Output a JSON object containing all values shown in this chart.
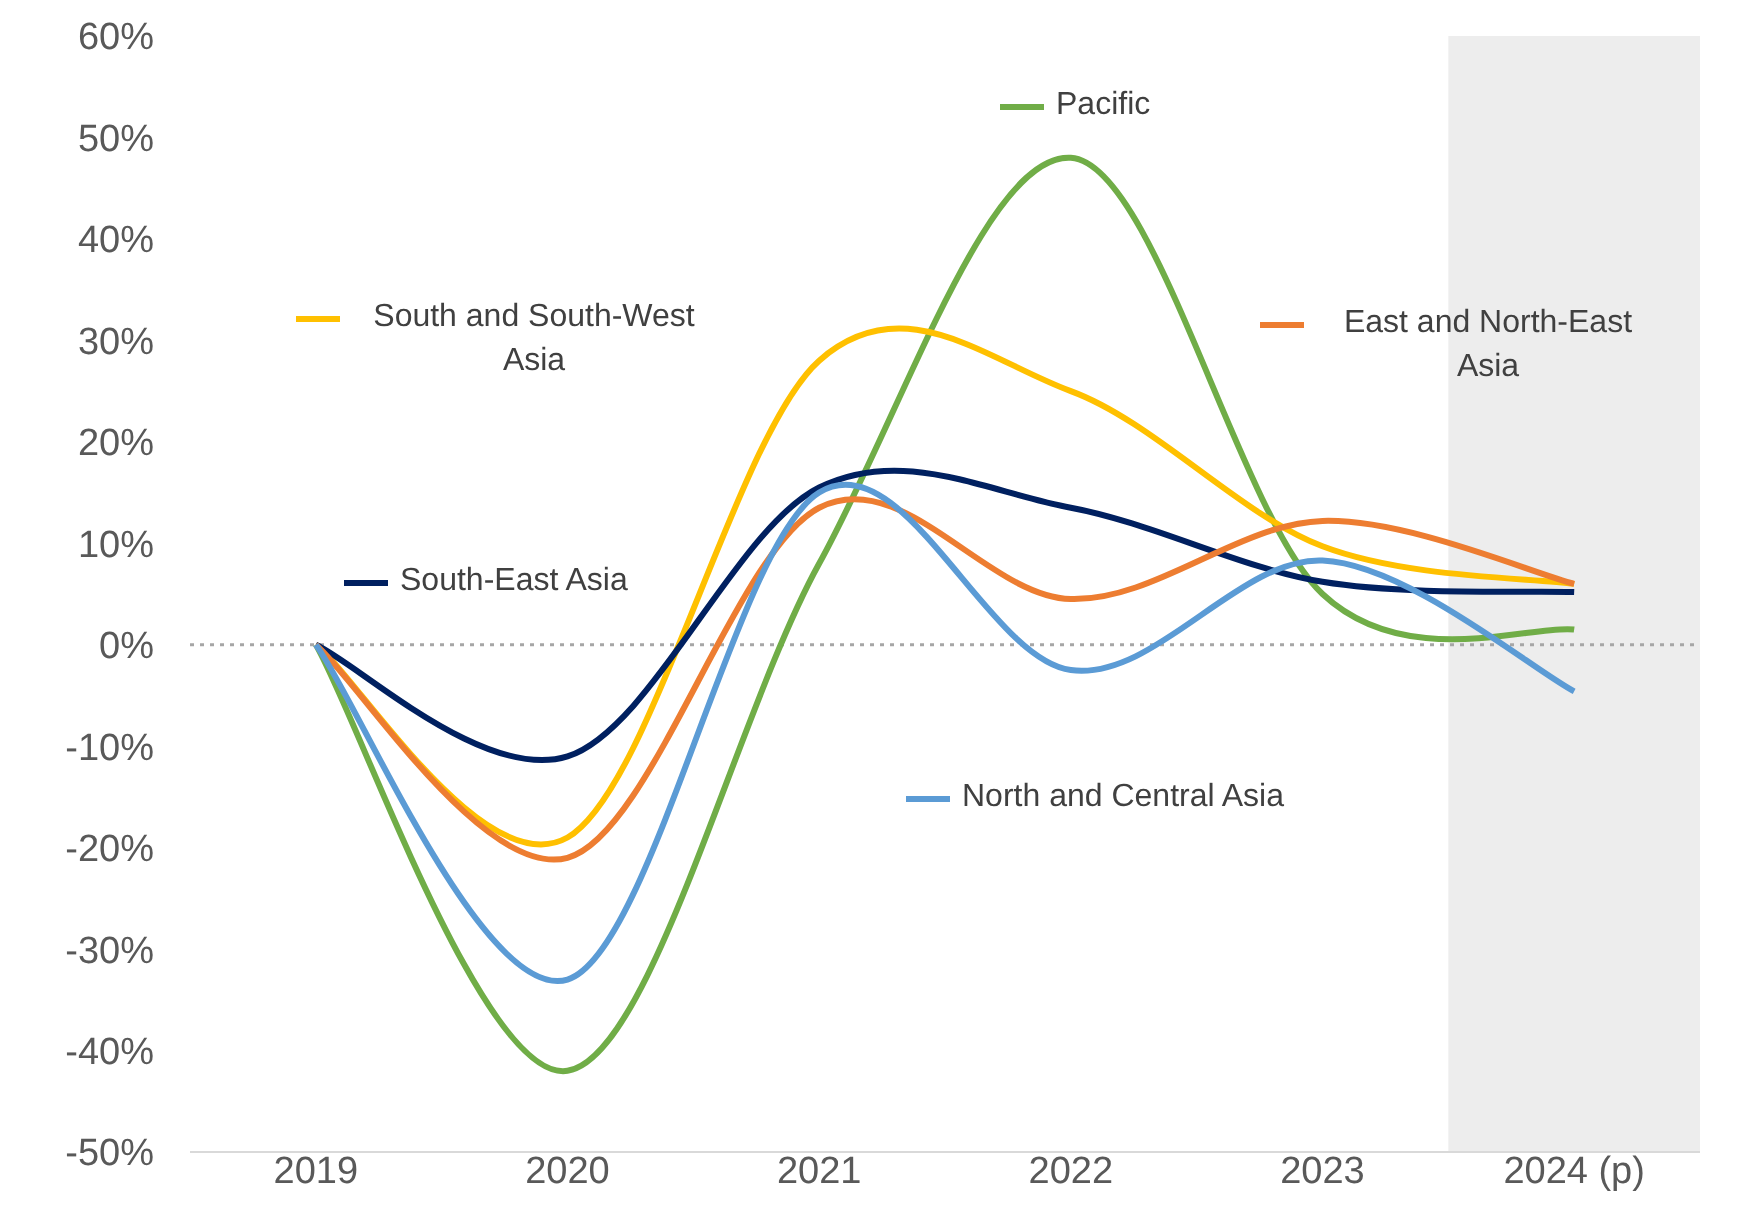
{
  "chart_data": {
    "type": "line",
    "x": [
      2019,
      2020,
      2021,
      2022,
      2023,
      2024
    ],
    "series": [
      {
        "name": "Pacific",
        "color": "#70ad47",
        "values": [
          0,
          -42,
          8,
          48,
          5,
          1.5
        ]
      },
      {
        "name": "South and South-West Asia",
        "color": "#ffc000",
        "values": [
          0,
          -19,
          28,
          25,
          9.7,
          6
        ]
      },
      {
        "name": "South-East Asia",
        "color": "#002060",
        "values": [
          0,
          -11,
          15.5,
          13.5,
          6.2,
          5.2
        ]
      },
      {
        "name": "East and North-East Asia",
        "color": "#ed7d31",
        "values": [
          0,
          -21,
          13.5,
          4.5,
          12.2,
          6
        ]
      },
      {
        "name": "North and Central Asia",
        "color": "#5b9bd5",
        "values": [
          0,
          -33,
          15,
          -2.5,
          8.3,
          -4.6
        ]
      }
    ],
    "xlim": [
      2018.5,
      2024.5
    ],
    "xticks": [
      2019,
      2020,
      2021,
      2022,
      2023,
      {
        "value": 2024,
        "label": "2024 (p)"
      }
    ],
    "ylim": [
      -50,
      60
    ],
    "yticks": [
      {
        "value": -50,
        "label": "-50%"
      },
      {
        "value": -40,
        "label": "-40%"
      },
      {
        "value": -30,
        "label": "-30%"
      },
      {
        "value": -20,
        "label": "-20%"
      },
      {
        "value": -10,
        "label": "-10%"
      },
      {
        "value": 0,
        "label": "0%"
      },
      {
        "value": 10,
        "label": "10%"
      },
      {
        "value": 20,
        "label": "20%"
      },
      {
        "value": 30,
        "label": "30%"
      },
      {
        "value": 40,
        "label": "40%"
      },
      {
        "value": 50,
        "label": "50%"
      },
      {
        "value": 60,
        "label": "60%"
      }
    ],
    "ref_lines": [
      {
        "axis": "y",
        "value": 0,
        "color": "#a6a6a6",
        "line_style": "dotted"
      }
    ],
    "bands": [
      {
        "axis": "x",
        "from": 2023.5,
        "to": 2024.5,
        "color": "#ededed"
      }
    ],
    "grid": false,
    "legend": "top",
    "marker": "none",
    "line_style": "solid"
  }
}
